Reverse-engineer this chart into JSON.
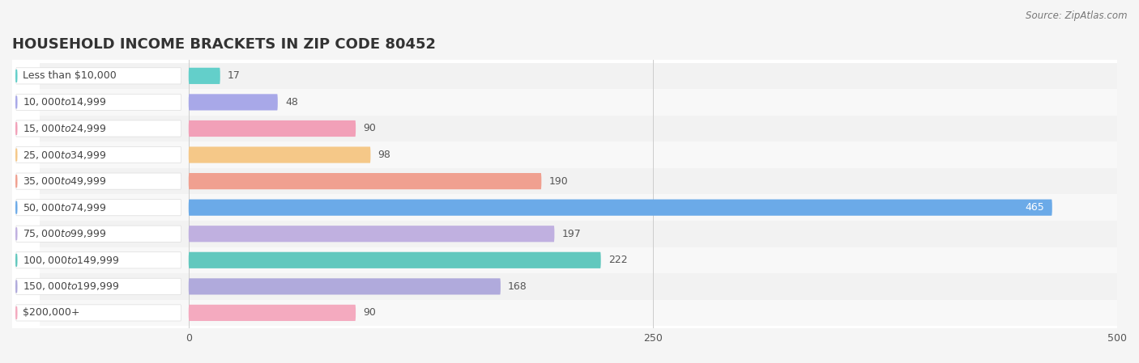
{
  "title": "HOUSEHOLD INCOME BRACKETS IN ZIP CODE 80452",
  "source": "Source: ZipAtlas.com",
  "categories": [
    "Less than $10,000",
    "$10,000 to $14,999",
    "$15,000 to $24,999",
    "$25,000 to $34,999",
    "$35,000 to $49,999",
    "$50,000 to $74,999",
    "$75,000 to $99,999",
    "$100,000 to $149,999",
    "$150,000 to $199,999",
    "$200,000+"
  ],
  "values": [
    17,
    48,
    90,
    98,
    190,
    465,
    197,
    222,
    168,
    90
  ],
  "bar_colors": [
    "#63CFCA",
    "#A8A8E8",
    "#F2A0B8",
    "#F5C888",
    "#F0A090",
    "#6BAAE8",
    "#C0B0E0",
    "#62C8BE",
    "#B0AADC",
    "#F4AABF"
  ],
  "row_bg_colors": [
    "#f2f2f2",
    "#f8f8f8"
  ],
  "xlim": [
    0,
    500
  ],
  "xticks": [
    0,
    250,
    500
  ],
  "background_color": "#f5f5f5",
  "plot_bg_color": "#ffffff",
  "title_fontsize": 13,
  "label_fontsize": 9,
  "value_fontsize": 9,
  "source_fontsize": 8.5,
  "label_pill_color": "#ffffff",
  "label_text_color": "#444444",
  "value_text_color_inside": "#ffffff",
  "value_text_color_outside": "#555555",
  "grid_color": "#cccccc"
}
